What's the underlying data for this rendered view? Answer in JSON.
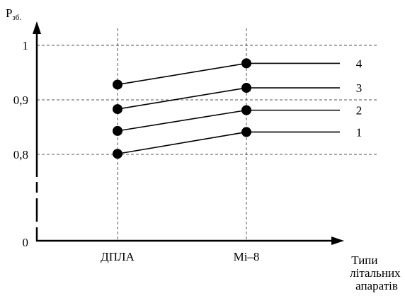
{
  "chart_data": {
    "type": "line",
    "ylabel_main": "P",
    "ylabel_sub": "зб.",
    "xlabel_lines": [
      "Типи",
      "літальних",
      "апаратів"
    ],
    "categories": [
      "ДПЛА",
      "Мі–8"
    ],
    "y_ticks": [
      {
        "value": 0,
        "label": "0"
      },
      {
        "value": 0.8,
        "label": "0,8"
      },
      {
        "value": 0.9,
        "label": "0,9"
      },
      {
        "value": 1,
        "label": "1"
      }
    ],
    "y_axis_break": true,
    "grid": true,
    "series": [
      {
        "name": "1",
        "values": [
          0.801,
          0.841
        ]
      },
      {
        "name": "2",
        "values": [
          0.843,
          0.881
        ]
      },
      {
        "name": "3",
        "values": [
          0.883,
          0.922
        ]
      },
      {
        "name": "4",
        "values": [
          0.928,
          0.967
        ]
      }
    ]
  }
}
